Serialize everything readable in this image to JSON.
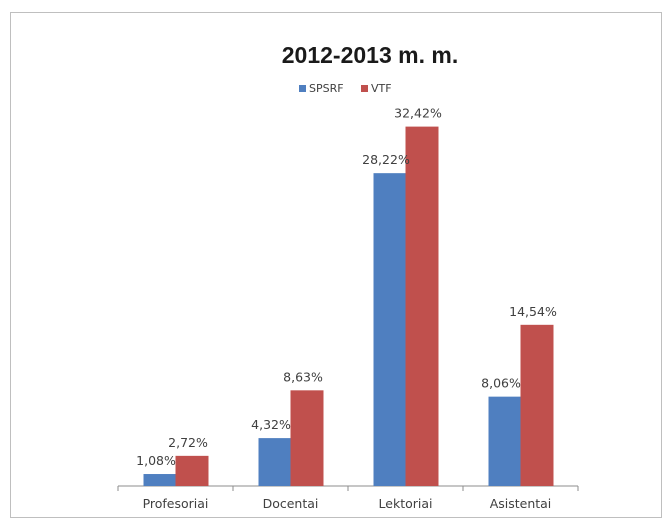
{
  "chart_data": {
    "type": "bar",
    "title": "2012-2013 m. m.",
    "categories": [
      "Profesoriai",
      "Docentai",
      "Lektoriai",
      "Asistentai"
    ],
    "series": [
      {
        "name": "SPSRF",
        "color": "#4f7fc0",
        "values": [
          1.08,
          4.32,
          28.22,
          8.06
        ],
        "labels": [
          "1,08%",
          "4,32%",
          "28,22%",
          "8,06%"
        ]
      },
      {
        "name": "VTF",
        "color": "#c0504d",
        "values": [
          2.72,
          8.63,
          32.42,
          14.54
        ],
        "labels": [
          "2,72%",
          "8,63%",
          "32,42%",
          "14,54%"
        ]
      }
    ],
    "ylim": [
      0,
      35
    ],
    "legend": "top",
    "grid": false
  }
}
